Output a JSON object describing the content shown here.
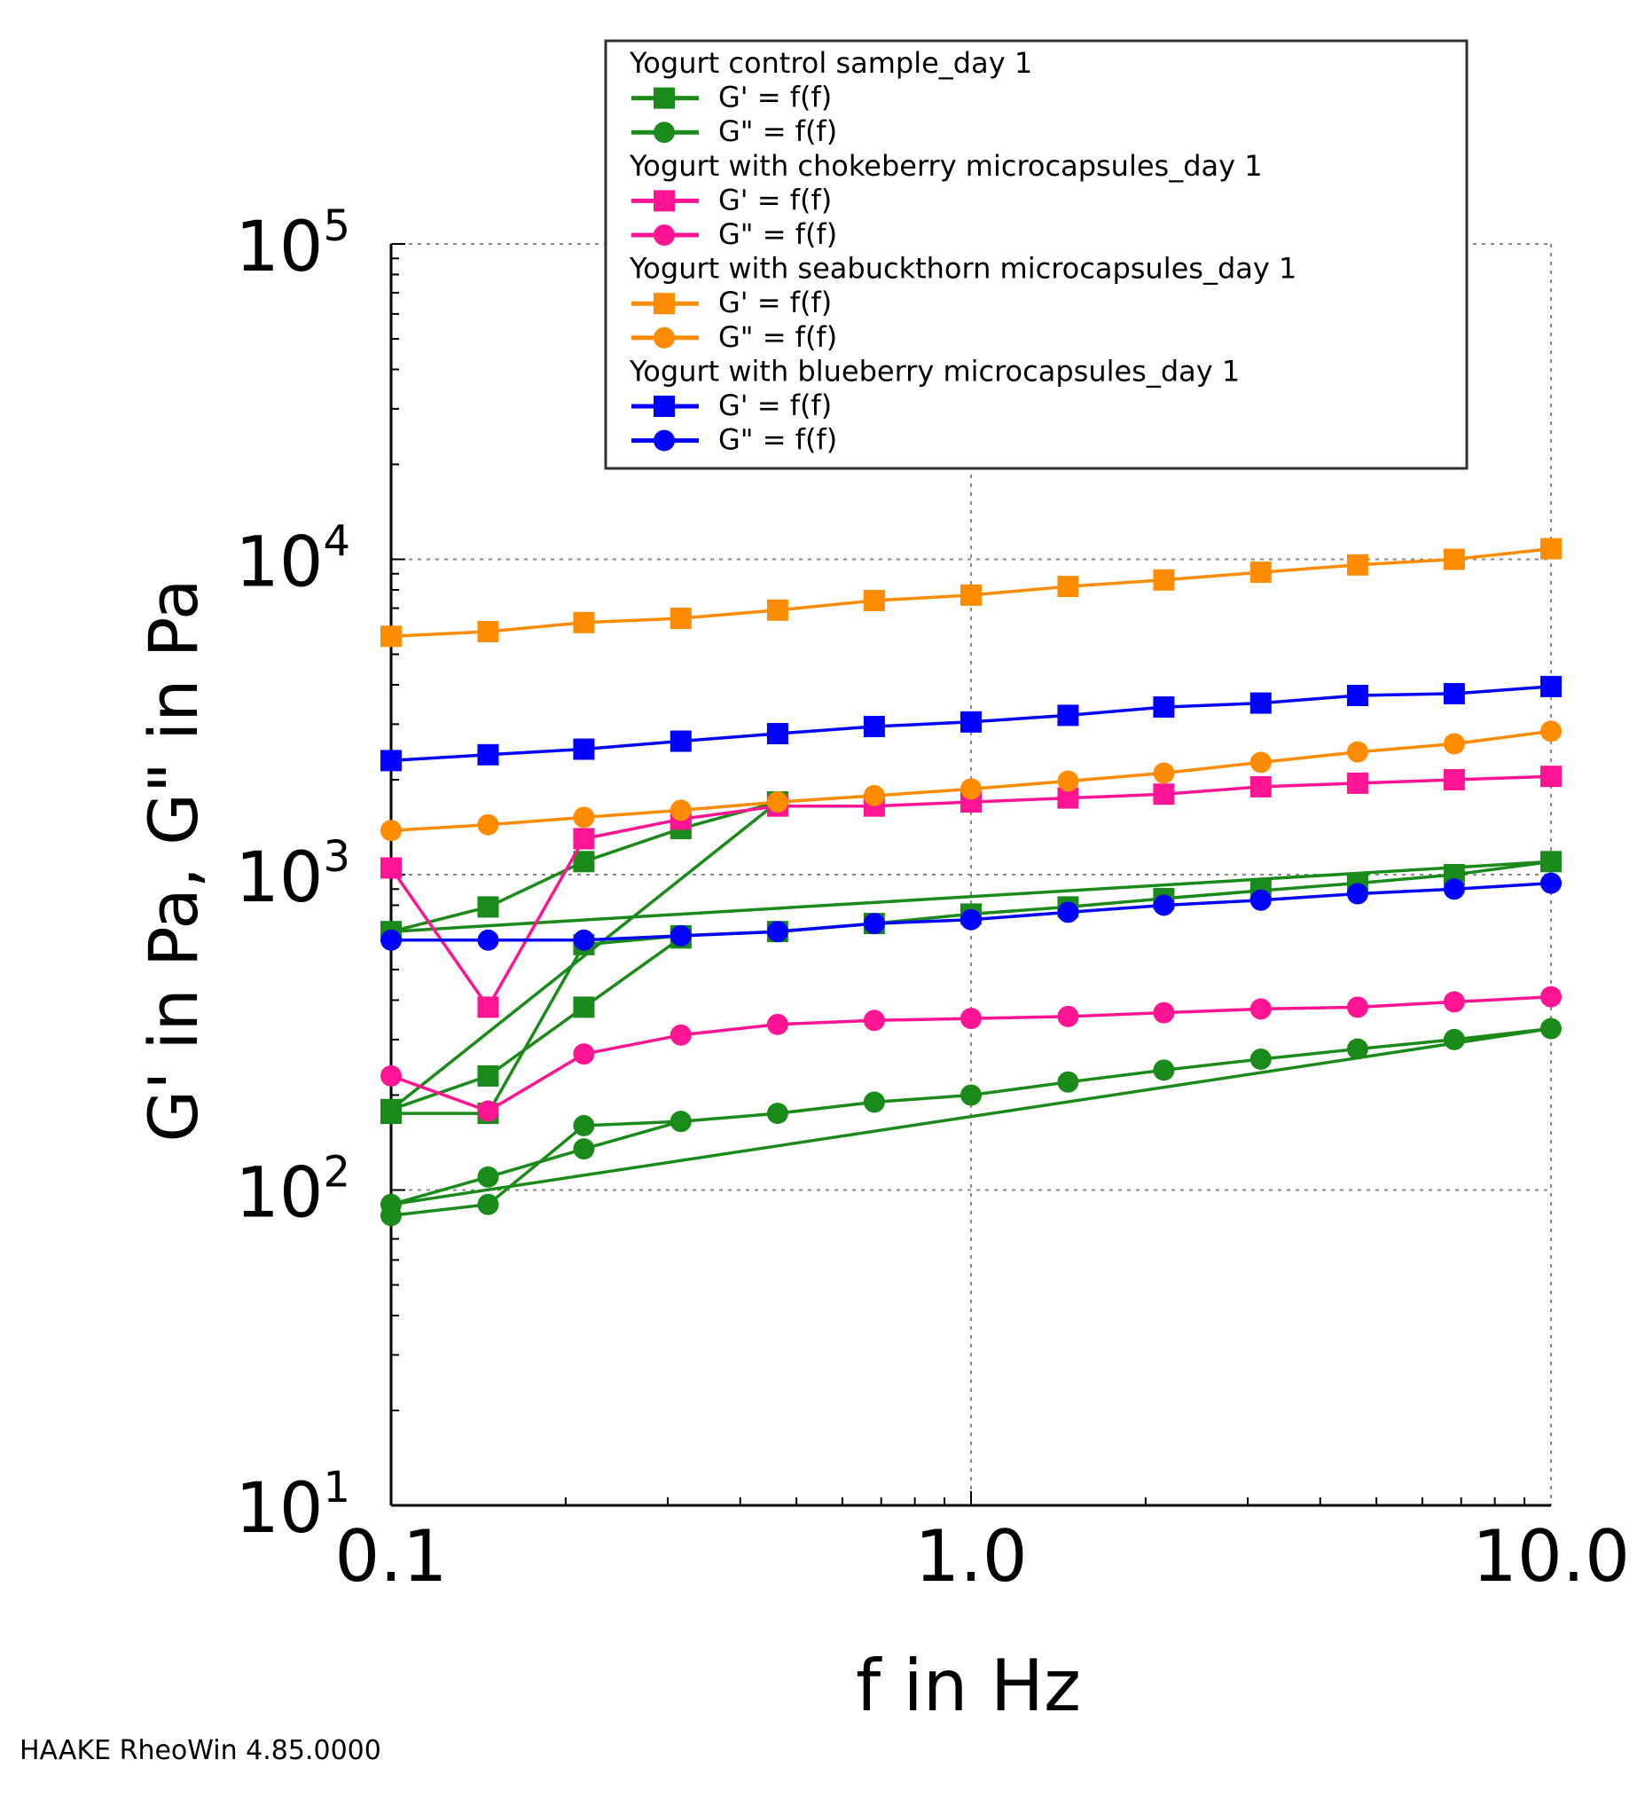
{
  "chart_data": {
    "type": "line",
    "xlabel": "f in Hz",
    "ylabel": "G' in Pa, G\" in Pa",
    "x_scale": "log",
    "y_scale": "log",
    "xlim": [
      0.1,
      10.0
    ],
    "ylim": [
      10,
      100000
    ],
    "x_ticks": [
      {
        "value": 0.1,
        "label": "0.1"
      },
      {
        "value": 1.0,
        "label": "1.0"
      },
      {
        "value": 10.0,
        "label": "10.0"
      }
    ],
    "y_ticks": [
      {
        "value": 10,
        "base": "10",
        "exp": "1"
      },
      {
        "value": 100,
        "base": "10",
        "exp": "2"
      },
      {
        "value": 1000,
        "base": "10",
        "exp": "3"
      },
      {
        "value": 10000,
        "base": "10",
        "exp": "4"
      },
      {
        "value": 100000,
        "base": "10",
        "exp": "5"
      }
    ],
    "grid": true,
    "legend_position": "top-right",
    "groups": [
      {
        "title": "Yogurt control sample_day 1",
        "color": "#1a8a1a"
      },
      {
        "title": "Yogurt with chokeberry microcapsules_day 1",
        "color": "#ff1493"
      },
      {
        "title": "Yogurt with seabuckthorn microcapsules_day 1",
        "color": "#ff8c00"
      },
      {
        "title": "Yogurt with blueberry microcapsules_day 1",
        "color": "#0000ff"
      }
    ],
    "series": [
      {
        "group": 0,
        "name": "G' = f(f)",
        "marker": "square",
        "color": "#1a8a1a",
        "x": [
          0.1,
          0.147,
          0.215,
          0.316,
          0.464,
          0.681,
          1.0,
          1.47,
          2.15,
          3.16,
          4.64,
          6.81,
          10.0,
          0.1,
          0.147,
          0.215,
          0.316,
          0.464,
          0.1,
          0.147,
          0.215,
          0.316
        ],
        "y": [
          175,
          175,
          600,
          640,
          660,
          700,
          750,
          790,
          840,
          890,
          940,
          1000,
          1100,
          660,
          790,
          1100,
          1400,
          1700,
          180,
          230,
          380,
          630
        ]
      },
      {
        "group": 0,
        "name": "G\" = f(f)",
        "marker": "circle",
        "color": "#1a8a1a",
        "x": [
          0.1,
          0.147,
          0.215,
          0.316,
          0.464,
          0.681,
          1.0,
          1.47,
          2.15,
          3.16,
          4.64,
          6.81,
          10.0,
          0.1,
          0.147,
          0.215,
          0.316
        ],
        "y": [
          83,
          90,
          160,
          165,
          175,
          190,
          200,
          220,
          240,
          260,
          280,
          300,
          325,
          90,
          110,
          135,
          165
        ]
      },
      {
        "group": 1,
        "name": "G' = f(f)",
        "marker": "square",
        "color": "#ff1493",
        "x": [
          0.1,
          0.147,
          0.215,
          0.316,
          0.464,
          0.681,
          1.0,
          1.47,
          2.15,
          3.16,
          4.64,
          6.81,
          10.0
        ],
        "y": [
          1050,
          380,
          1300,
          1500,
          1650,
          1650,
          1700,
          1750,
          1800,
          1900,
          1950,
          2000,
          2050
        ]
      },
      {
        "group": 1,
        "name": "G\" = f(f)",
        "marker": "circle",
        "color": "#ff1493",
        "x": [
          0.1,
          0.147,
          0.215,
          0.316,
          0.464,
          0.681,
          1.0,
          1.47,
          2.15,
          3.16,
          4.64,
          6.81,
          10.0
        ],
        "y": [
          230,
          178,
          270,
          310,
          335,
          345,
          350,
          355,
          365,
          375,
          380,
          395,
          410
        ]
      },
      {
        "group": 2,
        "name": "G' = f(f)",
        "marker": "square",
        "color": "#ff8c00",
        "x": [
          0.1,
          0.147,
          0.215,
          0.316,
          0.464,
          0.681,
          1.0,
          1.47,
          2.15,
          3.16,
          4.64,
          6.81,
          10.0
        ],
        "y": [
          5700,
          5900,
          6300,
          6500,
          6900,
          7400,
          7700,
          8200,
          8600,
          9100,
          9600,
          10000,
          10800
        ]
      },
      {
        "group": 2,
        "name": "G\" = f(f)",
        "marker": "circle",
        "color": "#ff8c00",
        "x": [
          0.1,
          0.147,
          0.215,
          0.316,
          0.464,
          0.681,
          1.0,
          1.47,
          2.15,
          3.16,
          4.64,
          6.81,
          10.0
        ],
        "y": [
          1380,
          1440,
          1520,
          1600,
          1700,
          1780,
          1870,
          1980,
          2100,
          2270,
          2450,
          2600,
          2850
        ]
      },
      {
        "group": 3,
        "name": "G' = f(f)",
        "marker": "square",
        "color": "#0000ff",
        "x": [
          0.1,
          0.147,
          0.215,
          0.316,
          0.464,
          0.681,
          1.0,
          1.47,
          2.15,
          3.16,
          4.64,
          6.81,
          10.0
        ],
        "y": [
          2300,
          2400,
          2500,
          2650,
          2800,
          2950,
          3050,
          3200,
          3400,
          3500,
          3700,
          3750,
          3950
        ]
      },
      {
        "group": 3,
        "name": "G\" = f(f)",
        "marker": "circle",
        "color": "#0000ff",
        "x": [
          0.1,
          0.147,
          0.215,
          0.316,
          0.464,
          0.681,
          1.0,
          1.47,
          2.15,
          3.16,
          4.64,
          6.81,
          10.0
        ],
        "y": [
          620,
          620,
          620,
          640,
          660,
          700,
          720,
          760,
          800,
          830,
          870,
          900,
          940
        ]
      }
    ]
  },
  "footer": "HAAKE RheoWin 4.85.0000"
}
